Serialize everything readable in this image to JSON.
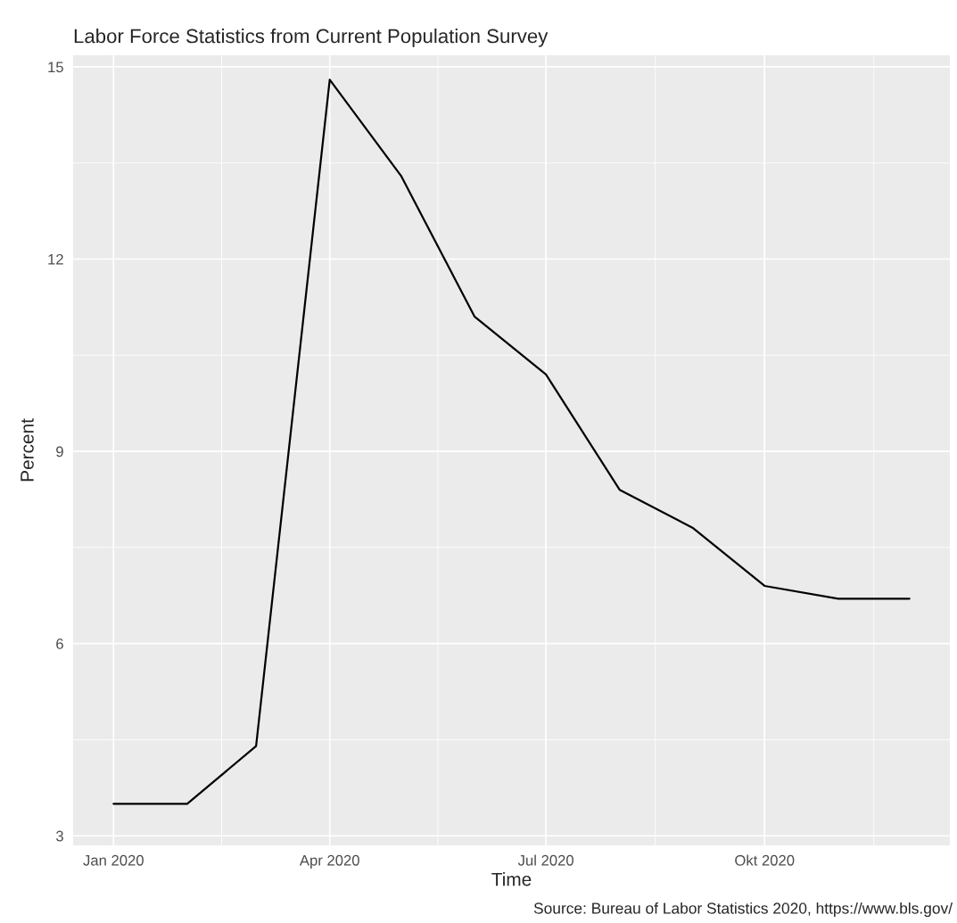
{
  "chart_data": {
    "type": "line",
    "title": "Labor Force Statistics from Current Population Survey",
    "xlabel": "Time",
    "ylabel": "Percent",
    "x": [
      "2020-01-01",
      "2020-02-01",
      "2020-03-01",
      "2020-04-01",
      "2020-05-01",
      "2020-06-01",
      "2020-07-01",
      "2020-08-01",
      "2020-09-01",
      "2020-10-01",
      "2020-11-01",
      "2020-12-01"
    ],
    "series": [
      {
        "color": "#000000",
        "values": [
          3.5,
          3.5,
          4.4,
          14.8,
          13.3,
          11.1,
          10.2,
          8.4,
          7.8,
          6.9,
          6.7,
          6.7
        ]
      }
    ],
    "xlim": [
      "2019-12-15",
      "2020-12-18"
    ],
    "xticks": [
      {
        "value": "2020-01-01",
        "label": "Jan 2020"
      },
      {
        "value": "2020-04-01",
        "label": "Apr 2020"
      },
      {
        "value": "2020-07-01",
        "label": "Jul 2020"
      },
      {
        "value": "2020-10-01",
        "label": "Okt 2020"
      }
    ],
    "ylim": [
      2.85,
      15.18
    ],
    "yticks": [
      3,
      6,
      9,
      12,
      15
    ],
    "grid": true,
    "marker": "none",
    "line_style": "solid",
    "annotations": [
      "Source: Bureau of Labor Statistics 2020, https://www.bls.gov/"
    ]
  }
}
